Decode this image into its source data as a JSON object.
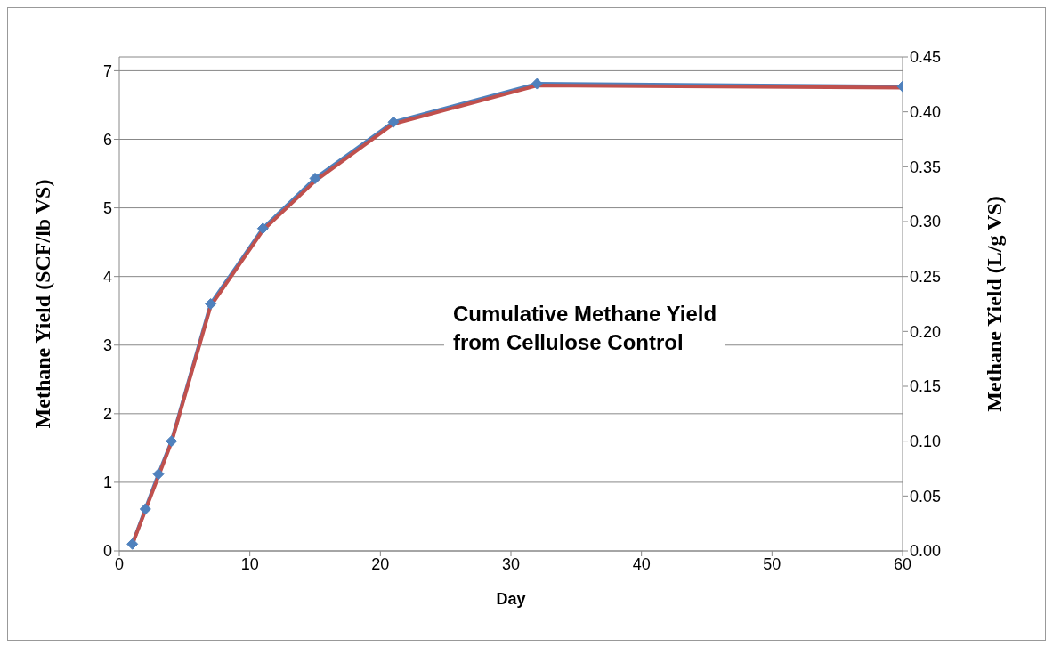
{
  "chart_data": {
    "type": "line",
    "title": "Cumulative Methane Yield\nfrom Cellulose Control",
    "xlabel": "Day",
    "ylabel": "Methane Yield (SCF/lb VS)",
    "y2label": "Methane Yield (L/g VS)",
    "x": [
      1,
      2,
      3,
      4,
      7,
      11,
      15,
      21,
      32,
      60
    ],
    "series": [
      {
        "color": "#4f81bd",
        "marker": "diamond",
        "values": [
          0.1,
          0.61,
          1.12,
          1.6,
          3.6,
          4.7,
          5.43,
          6.25,
          6.81,
          6.77
        ]
      },
      {
        "color": "#c0504d",
        "axis": "y2",
        "marker": "none",
        "values": [
          0.006,
          0.037,
          0.068,
          0.099,
          0.223,
          0.292,
          0.337,
          0.389,
          0.424,
          0.422
        ]
      }
    ],
    "xlim": [
      0,
      60
    ],
    "xticks": [
      0,
      10,
      20,
      30,
      40,
      50,
      60
    ],
    "ylim": [
      0,
      7.2
    ],
    "yticks": [
      0,
      1,
      2,
      3,
      4,
      5,
      6,
      7
    ],
    "y2lim": [
      0,
      0.45
    ],
    "y2ticks": [
      {
        "value": 0,
        "label": "0.00"
      },
      {
        "value": 0.05,
        "label": "0.05"
      },
      {
        "value": 0.1,
        "label": "0.10"
      },
      {
        "value": 0.15,
        "label": "0.15"
      },
      {
        "value": 0.2,
        "label": "0.20"
      },
      {
        "value": 0.25,
        "label": "0.25"
      },
      {
        "value": 0.3,
        "label": "0.30"
      },
      {
        "value": 0.35,
        "label": "0.35"
      },
      {
        "value": 0.4,
        "label": "0.40"
      },
      {
        "value": 0.45,
        "label": "0.45"
      }
    ],
    "grid": "y",
    "legend": false,
    "line_style": "solid"
  }
}
